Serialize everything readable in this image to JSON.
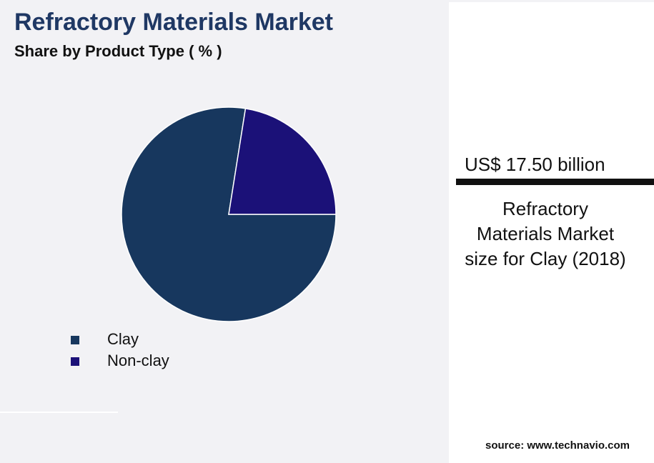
{
  "chart_data": {
    "type": "pie",
    "title": "Refractory Materials Market",
    "subtitle": "Share by Product Type ( % )",
    "categories": [
      "Clay",
      "Non-clay"
    ],
    "values": [
      77.5,
      22.5
    ],
    "colors": [
      "#17375e",
      "#1b1178"
    ],
    "start_angle": 90,
    "direction": "clockwise"
  },
  "highlight": {
    "value": "US$ 17.50 billion",
    "caption": "Refractory Materials Market size for Clay (2018)"
  },
  "source": "source: www.technavio.com"
}
